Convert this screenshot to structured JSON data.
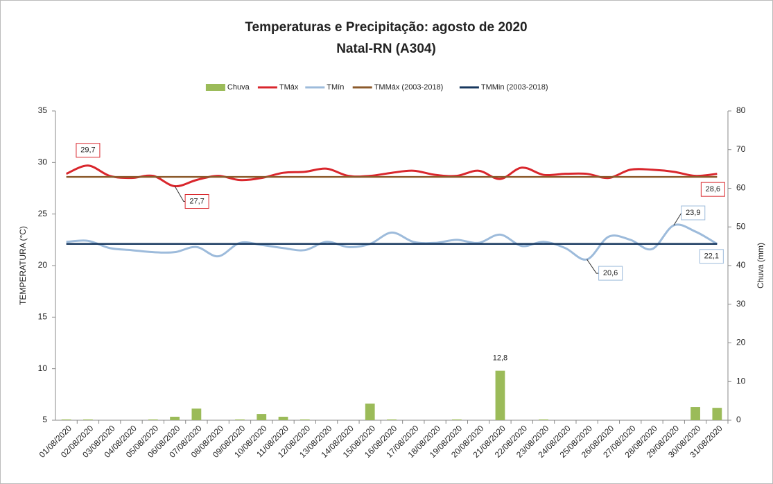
{
  "chart_data": {
    "type": "combo",
    "title": "Temperaturas e Precipitação:  agosto de 2020",
    "subtitle": "Natal-RN (A304)",
    "ylabel": "TEMPERATURA (°C)",
    "y2label": "Chuva (mm)",
    "categories": [
      "01/08/2020",
      "02/08/2020",
      "03/08/2020",
      "04/08/2020",
      "05/08/2020",
      "06/08/2020",
      "07/08/2020",
      "08/08/2020",
      "09/08/2020",
      "10/08/2020",
      "11/08/2020",
      "12/08/2020",
      "13/08/2020",
      "14/08/2020",
      "15/08/2020",
      "16/08/2020",
      "17/08/2020",
      "18/08/2020",
      "19/08/2020",
      "20/08/2020",
      "21/08/2020",
      "22/08/2020",
      "23/08/2020",
      "24/08/2020",
      "25/08/2020",
      "26/08/2020",
      "27/08/2020",
      "28/08/2020",
      "29/08/2020",
      "30/08/2020",
      "31/08/2020"
    ],
    "ylim": [
      5,
      35
    ],
    "yticks": [
      5,
      10,
      15,
      20,
      25,
      30,
      35
    ],
    "y2lim": [
      0,
      80
    ],
    "y2ticks": [
      0,
      10,
      20,
      30,
      40,
      50,
      60,
      70,
      80
    ],
    "legend": "top",
    "series": [
      {
        "name": "Chuva",
        "type": "bar",
        "axis": "y2",
        "color": "#9bbb59",
        "values": [
          0.2,
          0.2,
          0,
          0,
          0.2,
          0.9,
          3.0,
          0,
          0.2,
          1.6,
          0.9,
          0.2,
          0,
          0,
          4.3,
          0.2,
          0,
          0,
          0.2,
          0,
          12.8,
          0,
          0.2,
          0,
          0,
          0,
          0,
          0,
          0,
          3.4,
          3.2
        ],
        "value_labels": [
          null,
          null,
          null,
          null,
          null,
          null,
          null,
          null,
          null,
          null,
          null,
          null,
          null,
          null,
          null,
          null,
          null,
          null,
          null,
          null,
          "12,8",
          null,
          null,
          null,
          null,
          null,
          null,
          null,
          null,
          null,
          null
        ]
      },
      {
        "name": "TMáx",
        "type": "line",
        "color": "#d9262c",
        "values": [
          28.9,
          29.7,
          28.7,
          28.5,
          28.7,
          27.7,
          28.3,
          28.7,
          28.3,
          28.5,
          29.0,
          29.1,
          29.4,
          28.7,
          28.7,
          29.0,
          29.2,
          28.8,
          28.7,
          29.2,
          28.4,
          29.5,
          28.8,
          28.9,
          28.9,
          28.5,
          29.3,
          29.3,
          29.1,
          28.7,
          28.9
        ],
        "value_labels": [
          null,
          "29,7",
          null,
          null,
          null,
          "27,7",
          null,
          null,
          null,
          null,
          null,
          null,
          null,
          null,
          null,
          null,
          null,
          null,
          null,
          null,
          null,
          null,
          null,
          null,
          null,
          null,
          null,
          null,
          null,
          null,
          null
        ]
      },
      {
        "name": "TMín",
        "type": "line",
        "color": "#9dbbdb",
        "values": [
          22.3,
          22.4,
          21.7,
          21.5,
          21.3,
          21.3,
          21.8,
          20.9,
          22.2,
          22.0,
          21.7,
          21.5,
          22.3,
          21.8,
          22.1,
          23.2,
          22.3,
          22.2,
          22.5,
          22.2,
          23.0,
          21.9,
          22.3,
          21.7,
          20.6,
          22.8,
          22.5,
          21.6,
          23.9,
          23.3,
          22.1
        ],
        "value_labels": [
          null,
          null,
          null,
          null,
          null,
          null,
          null,
          null,
          null,
          null,
          null,
          null,
          null,
          null,
          null,
          null,
          null,
          null,
          null,
          null,
          null,
          null,
          null,
          null,
          "20,6",
          null,
          null,
          null,
          "23,9",
          null,
          "22,1"
        ]
      },
      {
        "name": "TMMáx (2003-2018)",
        "type": "flat",
        "color": "#8b5a2b",
        "values": [
          28.6,
          28.6,
          28.6,
          28.6,
          28.6,
          28.6,
          28.6,
          28.6,
          28.6,
          28.6,
          28.6,
          28.6,
          28.6,
          28.6,
          28.6,
          28.6,
          28.6,
          28.6,
          28.6,
          28.6,
          28.6,
          28.6,
          28.6,
          28.6,
          28.6,
          28.6,
          28.6,
          28.6,
          28.6,
          28.6,
          28.6
        ],
        "value_labels": [
          null,
          null,
          null,
          null,
          null,
          null,
          null,
          null,
          null,
          null,
          null,
          null,
          null,
          null,
          null,
          null,
          null,
          null,
          null,
          null,
          null,
          null,
          null,
          null,
          null,
          null,
          null,
          null,
          null,
          null,
          "28,6"
        ]
      },
      {
        "name": "TMMin (2003-2018)",
        "type": "flat",
        "color": "#17375e",
        "values": [
          22.1,
          22.1,
          22.1,
          22.1,
          22.1,
          22.1,
          22.1,
          22.1,
          22.1,
          22.1,
          22.1,
          22.1,
          22.1,
          22.1,
          22.1,
          22.1,
          22.1,
          22.1,
          22.1,
          22.1,
          22.1,
          22.1,
          22.1,
          22.1,
          22.1,
          22.1,
          22.1,
          22.1,
          22.1,
          22.1,
          22.1
        ]
      }
    ]
  }
}
